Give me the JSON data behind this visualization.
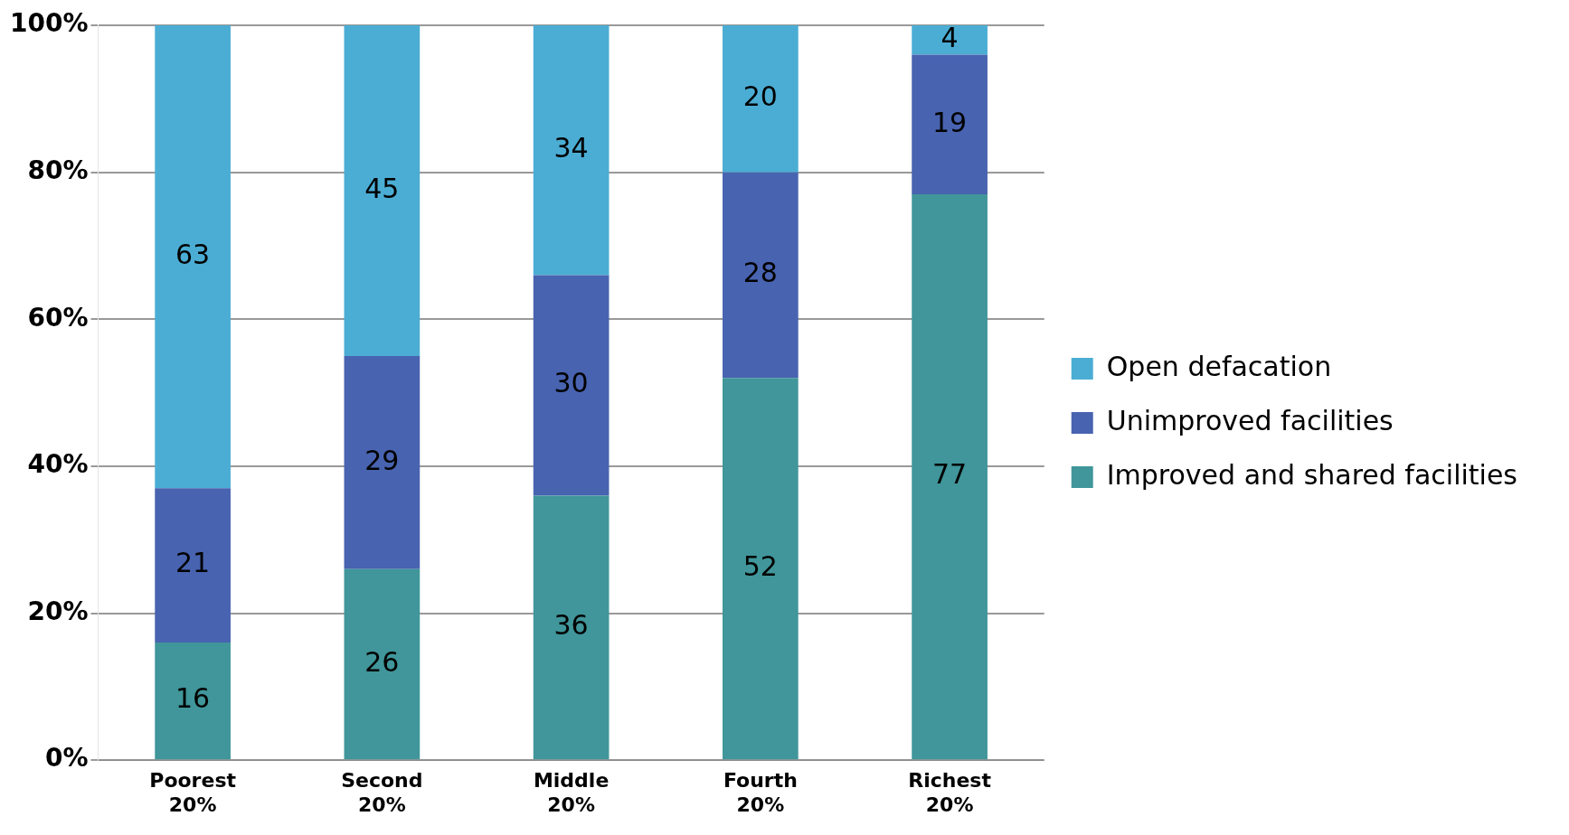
{
  "chart_data": {
    "type": "bar",
    "stacked": true,
    "categories": [
      "Poorest 20%",
      "Second 20%",
      "Middle 20%",
      "Fourth 20%",
      "Richest 20%"
    ],
    "series": [
      {
        "name": "Improved and shared facilities",
        "color": "#40969a",
        "values": [
          16,
          26,
          36,
          52,
          77
        ]
      },
      {
        "name": "Unimproved facilities",
        "color": "#4863b0",
        "values": [
          21,
          29,
          30,
          28,
          19
        ]
      },
      {
        "name": "Open defacation",
        "color": "#4badd4",
        "values": [
          63,
          45,
          34,
          20,
          4
        ]
      }
    ],
    "ylim": [
      0,
      100
    ],
    "yticks": [
      {
        "value": 0,
        "label": "0%"
      },
      {
        "value": 20,
        "label": "20%"
      },
      {
        "value": 40,
        "label": "40%"
      },
      {
        "value": 60,
        "label": "60%"
      },
      {
        "value": 80,
        "label": "80%"
      },
      {
        "value": 100,
        "label": "100%"
      }
    ],
    "grid": "y",
    "legend": "right",
    "data_labels": true
  }
}
